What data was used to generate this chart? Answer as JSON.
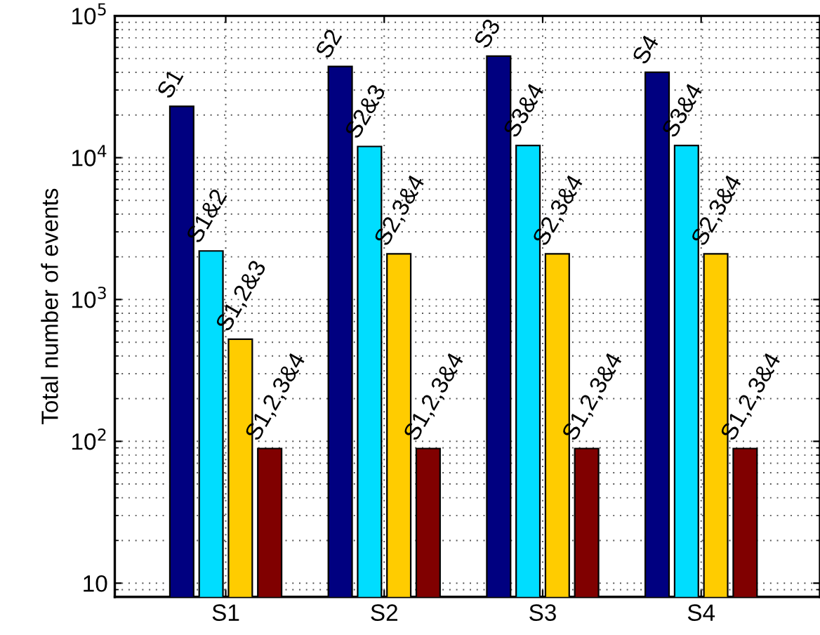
{
  "chart_data": {
    "type": "bar",
    "categories": [
      "S1",
      "S2",
      "S3",
      "S4"
    ],
    "ylabel": "Total number of events",
    "log": "y",
    "ylim": [
      8,
      100000
    ],
    "yticks": [
      10,
      {
        "value": 100,
        "label": "10$^{2}$"
      },
      {
        "value": 1000,
        "label": "10$^{3}$"
      },
      {
        "value": 10000,
        "label": "10$^{4}$"
      },
      {
        "value": 100000,
        "label": "10$^{5}$"
      }
    ],
    "grid": true,
    "series": [
      {
        "color": "#000080",
        "values": [
          23000,
          44000,
          52000,
          40000
        ],
        "value_labels": [
          "S1",
          "S2",
          "S3",
          "S4"
        ]
      },
      {
        "color": "#00ddff",
        "values": [
          2200,
          12000,
          12200,
          12200
        ],
        "value_labels": [
          "S1&2",
          "S2&3",
          "S3&4",
          "S3&4"
        ]
      },
      {
        "color": "#ffcc00",
        "values": [
          525,
          2100,
          2100,
          2100
        ],
        "value_labels": [
          "S1,2&3",
          "S2,3&4",
          "S2,3&4",
          "S2,3&4"
        ]
      },
      {
        "color": "#800000",
        "values": [
          89,
          89,
          89,
          89
        ],
        "value_labels": [
          "S1,2,3&4",
          "S1,2,3&4",
          "S1,2,3&4",
          "S1,2,3&4"
        ]
      }
    ]
  }
}
